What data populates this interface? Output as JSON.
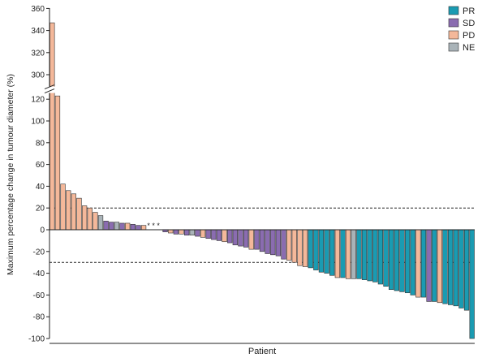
{
  "chart_data": {
    "type": "bar",
    "xlabel": "Patient",
    "ylabel": "Maximum percentage change in tumour diameter (%)",
    "ylim": [
      -100,
      360
    ],
    "axis_break": {
      "from": 125,
      "to": 290
    },
    "yticks": [
      "360",
      "340",
      "320",
      "300",
      "120",
      "100",
      "80",
      "60",
      "40",
      "20",
      "0",
      "-20",
      "-40",
      "-60",
      "-80",
      "-100"
    ],
    "reference_lines": [
      20,
      -30
    ],
    "asterisk_label": "* * *",
    "colors": {
      "PR": "#1a9bb2",
      "SD": "#8a6cb0",
      "PD": "#f4b89a",
      "NE": "#a9b3b8"
    },
    "legend": {
      "position": "top-right",
      "entries": [
        "PR",
        "SD",
        "PD",
        "NE"
      ]
    },
    "series": [
      {
        "name": "PR",
        "values": [
          -35,
          -37,
          -39,
          -40,
          -42,
          -44,
          -45,
          -46,
          -47,
          -48,
          -50,
          -52,
          -55,
          -56,
          -57,
          -58,
          -60,
          -62,
          -66,
          -68,
          -69,
          -70,
          -72,
          -74,
          -100
        ]
      },
      {
        "name": "SD",
        "values": [
          8,
          7,
          6,
          5,
          4,
          -2,
          -4,
          -5,
          -6,
          -8,
          -9,
          -10,
          -12,
          -14,
          -15,
          -16,
          -18,
          -20,
          -22,
          -23,
          -24,
          -27,
          -66
        ]
      },
      {
        "name": "PD",
        "values": [
          347,
          123,
          42,
          36,
          33,
          29,
          22,
          20,
          16,
          6,
          4,
          -3,
          -4,
          -7,
          -11,
          -18,
          -28,
          -30,
          -33,
          -34,
          -44,
          -45,
          -62,
          -67
        ]
      },
      {
        "name": "NE",
        "values": [
          13,
          7,
          0,
          0,
          0,
          -5,
          -45
        ]
      }
    ],
    "bars": [
      {
        "v": 347,
        "c": "PD"
      },
      {
        "v": 123,
        "c": "PD"
      },
      {
        "v": 42,
        "c": "PD"
      },
      {
        "v": 36,
        "c": "PD"
      },
      {
        "v": 33,
        "c": "PD"
      },
      {
        "v": 29,
        "c": "PD"
      },
      {
        "v": 22,
        "c": "PD"
      },
      {
        "v": 20,
        "c": "PD"
      },
      {
        "v": 16,
        "c": "PD"
      },
      {
        "v": 13,
        "c": "NE"
      },
      {
        "v": 8,
        "c": "SD"
      },
      {
        "v": 7,
        "c": "SD"
      },
      {
        "v": 7,
        "c": "NE"
      },
      {
        "v": 6,
        "c": "SD"
      },
      {
        "v": 6,
        "c": "PD"
      },
      {
        "v": 5,
        "c": "SD"
      },
      {
        "v": 4,
        "c": "SD"
      },
      {
        "v": 4,
        "c": "PD"
      },
      {
        "v": 0,
        "c": "NE"
      },
      {
        "v": 0,
        "c": "NE"
      },
      {
        "v": 0,
        "c": "NE"
      },
      {
        "v": -2,
        "c": "SD"
      },
      {
        "v": -3,
        "c": "PD"
      },
      {
        "v": -4,
        "c": "SD"
      },
      {
        "v": -4,
        "c": "PD"
      },
      {
        "v": -5,
        "c": "SD"
      },
      {
        "v": -5,
        "c": "NE"
      },
      {
        "v": -6,
        "c": "SD"
      },
      {
        "v": -7,
        "c": "PD"
      },
      {
        "v": -8,
        "c": "SD"
      },
      {
        "v": -9,
        "c": "SD"
      },
      {
        "v": -10,
        "c": "SD"
      },
      {
        "v": -11,
        "c": "PD"
      },
      {
        "v": -12,
        "c": "SD"
      },
      {
        "v": -14,
        "c": "SD"
      },
      {
        "v": -15,
        "c": "SD"
      },
      {
        "v": -16,
        "c": "SD"
      },
      {
        "v": -18,
        "c": "PD"
      },
      {
        "v": -18,
        "c": "SD"
      },
      {
        "v": -20,
        "c": "SD"
      },
      {
        "v": -22,
        "c": "SD"
      },
      {
        "v": -23,
        "c": "SD"
      },
      {
        "v": -24,
        "c": "SD"
      },
      {
        "v": -27,
        "c": "SD"
      },
      {
        "v": -28,
        "c": "PD"
      },
      {
        "v": -30,
        "c": "PD"
      },
      {
        "v": -33,
        "c": "PD"
      },
      {
        "v": -34,
        "c": "PD"
      },
      {
        "v": -35,
        "c": "PR"
      },
      {
        "v": -37,
        "c": "PR"
      },
      {
        "v": -39,
        "c": "PR"
      },
      {
        "v": -40,
        "c": "PR"
      },
      {
        "v": -42,
        "c": "PR"
      },
      {
        "v": -44,
        "c": "PD"
      },
      {
        "v": -44,
        "c": "PR"
      },
      {
        "v": -45,
        "c": "PD"
      },
      {
        "v": -45,
        "c": "NE"
      },
      {
        "v": -45,
        "c": "PR"
      },
      {
        "v": -46,
        "c": "PR"
      },
      {
        "v": -47,
        "c": "PR"
      },
      {
        "v": -48,
        "c": "PR"
      },
      {
        "v": -50,
        "c": "PR"
      },
      {
        "v": -52,
        "c": "PR"
      },
      {
        "v": -55,
        "c": "PR"
      },
      {
        "v": -56,
        "c": "PR"
      },
      {
        "v": -57,
        "c": "PR"
      },
      {
        "v": -58,
        "c": "PR"
      },
      {
        "v": -60,
        "c": "PR"
      },
      {
        "v": -62,
        "c": "PD"
      },
      {
        "v": -62,
        "c": "PR"
      },
      {
        "v": -66,
        "c": "SD"
      },
      {
        "v": -66,
        "c": "PR"
      },
      {
        "v": -67,
        "c": "PD"
      },
      {
        "v": -68,
        "c": "PR"
      },
      {
        "v": -69,
        "c": "PR"
      },
      {
        "v": -70,
        "c": "PR"
      },
      {
        "v": -72,
        "c": "PR"
      },
      {
        "v": -74,
        "c": "PR"
      },
      {
        "v": -100,
        "c": "PR"
      }
    ]
  }
}
